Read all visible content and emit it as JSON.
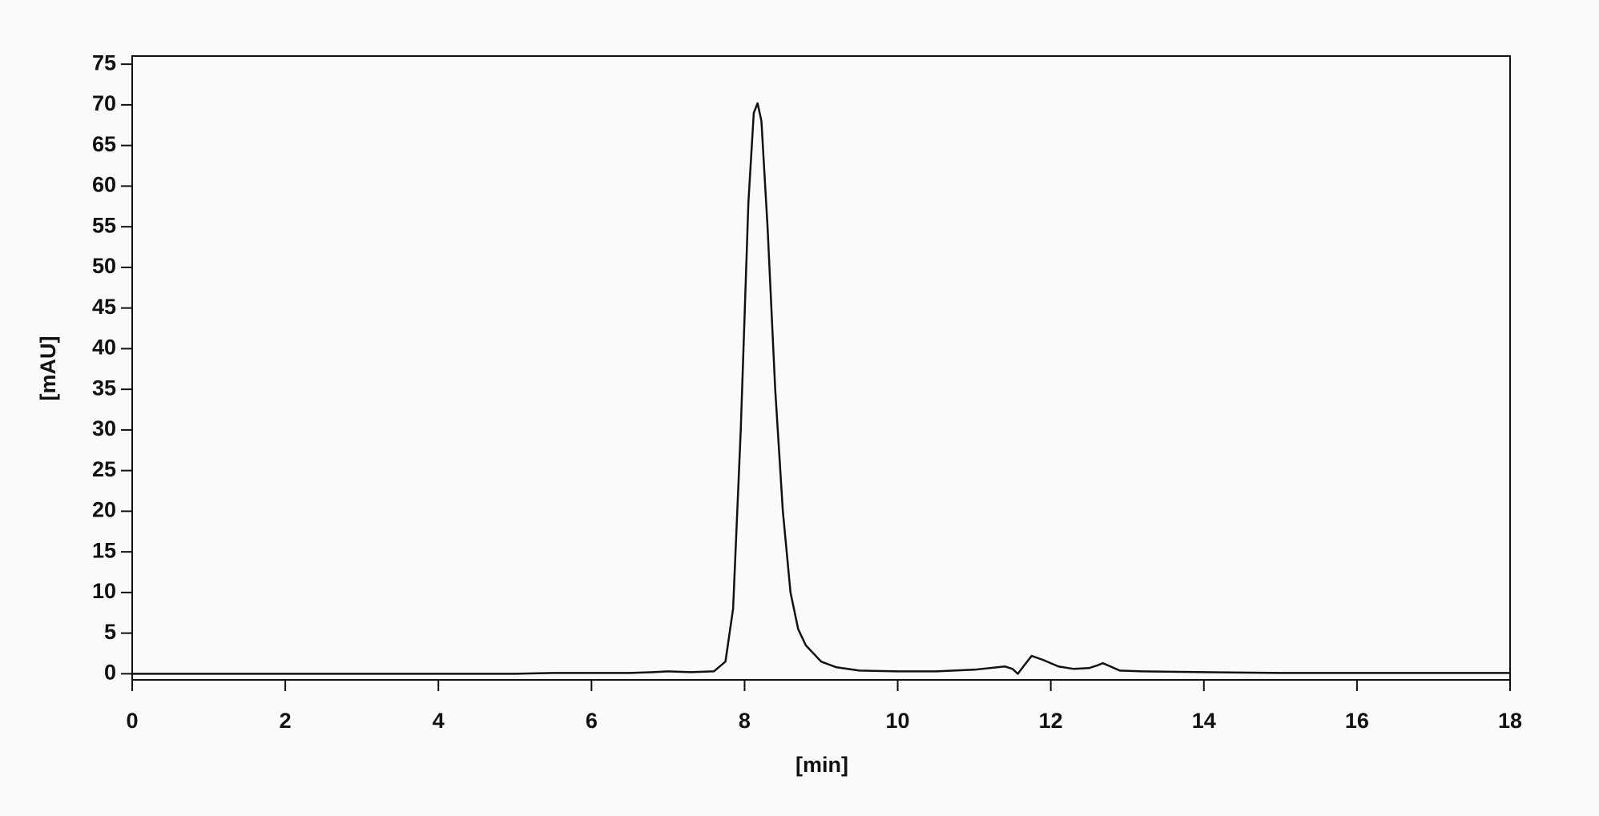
{
  "chart_data": {
    "type": "line",
    "x_label": "[min]",
    "y_label": "[mAU]",
    "xlim": [
      0,
      18
    ],
    "xticks": [
      0,
      2,
      4,
      6,
      8,
      10,
      12,
      14,
      16,
      18
    ],
    "ylim": [
      -0.75,
      76
    ],
    "yticks": [
      0,
      5,
      10,
      15,
      20,
      25,
      30,
      35,
      40,
      45,
      50,
      55,
      60,
      65,
      70,
      75
    ],
    "series": [
      {
        "color": "#111111",
        "x": [
          0,
          5,
          5.5,
          6,
          6.5,
          6.8,
          7,
          7.3,
          7.6,
          7.75,
          7.85,
          7.95,
          8.05,
          8.12,
          8.17,
          8.22,
          8.3,
          8.4,
          8.5,
          8.6,
          8.7,
          8.8,
          9,
          9.2,
          9.5,
          10,
          10.5,
          11,
          11.4,
          11.5,
          11.57,
          11.65,
          11.75,
          11.9,
          12.1,
          12.3,
          12.5,
          12.6,
          12.68,
          12.78,
          12.9,
          13.2,
          14,
          15,
          16,
          17,
          18
        ],
        "values": [
          0,
          0,
          0.1,
          0.1,
          0.1,
          0.2,
          0.3,
          0.2,
          0.3,
          1.5,
          8,
          30,
          58,
          69,
          70.2,
          68,
          55,
          35,
          20,
          10,
          5.5,
          3.5,
          1.5,
          0.8,
          0.4,
          0.3,
          0.3,
          0.5,
          0.9,
          0.6,
          0,
          1,
          2.2,
          1.7,
          0.9,
          0.6,
          0.7,
          1,
          1.3,
          0.9,
          0.4,
          0.3,
          0.2,
          0.1,
          0.1,
          0.1,
          0.1
        ]
      }
    ]
  }
}
